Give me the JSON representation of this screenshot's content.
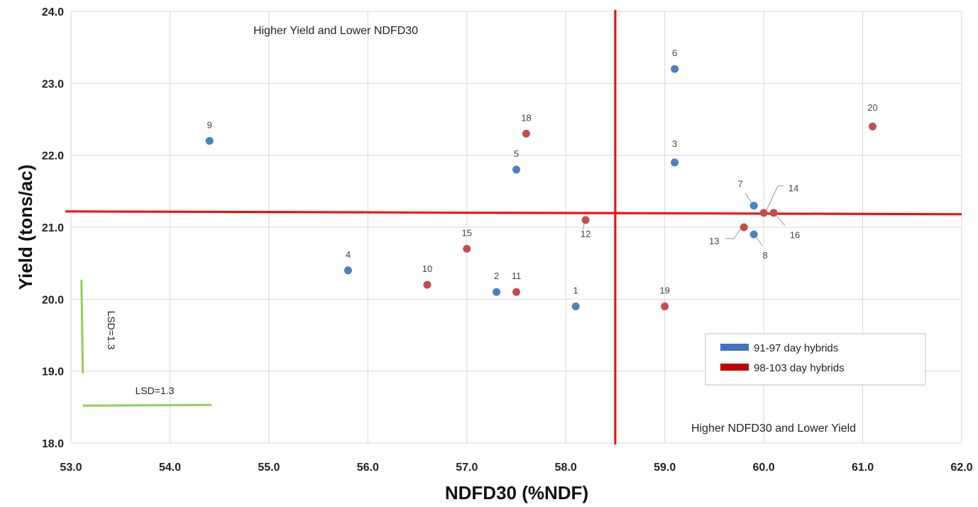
{
  "chart_data": {
    "type": "scatter",
    "xlabel": "NDFD30 (%NDF)",
    "ylabel": "Yield (tons/ac)",
    "xlim": [
      53.0,
      62.0
    ],
    "ylim": [
      18.0,
      24.0
    ],
    "x_ticks": [
      "53.0",
      "54.0",
      "55.0",
      "56.0",
      "57.0",
      "58.0",
      "59.0",
      "60.0",
      "61.0",
      "62.0"
    ],
    "y_ticks": [
      "18.0",
      "19.0",
      "20.0",
      "21.0",
      "22.0",
      "23.0",
      "24.0"
    ],
    "grid": true,
    "legend_position": "bottom-right",
    "series": [
      {
        "name": "91-97 day hybrids",
        "color": "#4f81bd",
        "points": [
          {
            "label": "1",
            "x": 58.1,
            "y": 19.9
          },
          {
            "label": "2",
            "x": 57.3,
            "y": 20.1
          },
          {
            "label": "3",
            "x": 59.1,
            "y": 21.9
          },
          {
            "label": "4",
            "x": 55.8,
            "y": 20.4
          },
          {
            "label": "5",
            "x": 57.5,
            "y": 21.8
          },
          {
            "label": "6",
            "x": 59.1,
            "y": 23.2
          },
          {
            "label": "7",
            "x": 59.9,
            "y": 21.3
          },
          {
            "label": "8",
            "x": 59.9,
            "y": 20.9
          },
          {
            "label": "9",
            "x": 54.4,
            "y": 22.2
          }
        ]
      },
      {
        "name": "98-103 day hybrids",
        "color": "#c0504d",
        "points": [
          {
            "label": "10",
            "x": 56.6,
            "y": 20.2
          },
          {
            "label": "11",
            "x": 57.5,
            "y": 20.1
          },
          {
            "label": "12",
            "x": 58.2,
            "y": 21.1
          },
          {
            "label": "13",
            "x": 59.8,
            "y": 21.0
          },
          {
            "label": "14",
            "x": 60.0,
            "y": 21.2
          },
          {
            "label": "15",
            "x": 57.0,
            "y": 20.7
          },
          {
            "label": "16",
            "x": 60.1,
            "y": 21.2
          },
          {
            "label": "18",
            "x": 57.6,
            "y": 22.3
          },
          {
            "label": "19",
            "x": 59.0,
            "y": 19.9
          },
          {
            "label": "20",
            "x": 61.1,
            "y": 22.4
          }
        ]
      }
    ],
    "mean_lines": {
      "x": 58.5,
      "y": 21.2,
      "color": "#ff0000"
    },
    "annotations": {
      "upper_left": "Higher Yield and Lower NDFD30",
      "lower_right": "Higher NDFD30 and Lower Yield"
    },
    "lsd": {
      "label_x": "LSD=1.3",
      "label_y": "LSD=1.3",
      "value": 1.3,
      "color": "#92d050"
    },
    "legend_marker_colors": [
      "#4472c4",
      "#c00000"
    ]
  }
}
